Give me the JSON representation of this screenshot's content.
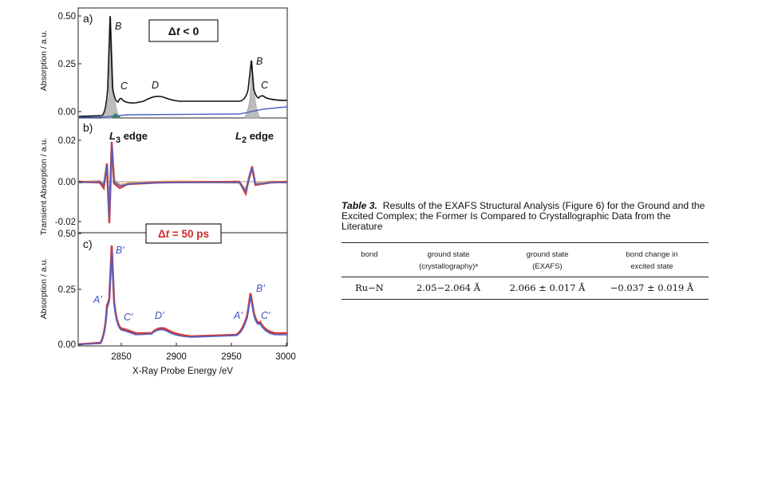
{
  "figure": {
    "xlabel": "X-Ray Probe Energy /eV",
    "x_ticks": [
      "2850",
      "2900",
      "2950",
      "3000"
    ],
    "panel_a": {
      "letter": "a)",
      "ylabel": "Absorption / a.u.",
      "y_ticks": [
        "0.50",
        "0.25",
        "0.00"
      ],
      "box_prefix": "Δ",
      "box_var": "t",
      "box_rest": " < 0",
      "peaks": [
        "B",
        "C",
        "D",
        "B",
        "C"
      ]
    },
    "panel_b": {
      "letter": "b)",
      "ylabel": "Transient Absorption / a.u.",
      "y_ticks": [
        "0.02",
        "0.00",
        "-0.02"
      ],
      "edge_l3_letter": "L",
      "edge_l3_sub": "3",
      "edge_l3_word": " edge",
      "edge_l2_letter": "L",
      "edge_l2_sub": "2",
      "edge_l2_word": " edge"
    },
    "panel_c": {
      "letter": "c)",
      "ylabel": "Absorption / a.u.",
      "y_ticks": [
        "0.50",
        "0.25",
        "0.00"
      ],
      "box_prefix": "Δ",
      "box_var": "t",
      "box_rest": " = 50 ps",
      "peaks": [
        "A'",
        "B'",
        "C'",
        "D'",
        "A'",
        "B'",
        "C'"
      ]
    }
  },
  "caption": {
    "label": "Table 3.",
    "text": "Results of the EXAFS Structural Analysis (Figure 6) for the Ground and the Excited Complex; the Former Is Compared to Crystallographic Data from the Literature"
  },
  "table": {
    "headers": [
      {
        "line1": "",
        "line2": "bond"
      },
      {
        "line1": "ground state",
        "line2": "(crystallography)ᵃ"
      },
      {
        "line1": "ground state",
        "line2": "(EXAFS)"
      },
      {
        "line1": "bond change in",
        "line2": "excited state"
      }
    ],
    "rows": [
      [
        "Ru−N",
        "2.05−2.064 Å",
        "2.066 ± 0.017 Å",
        "−0.037 ± 0.019 Å"
      ]
    ]
  },
  "colors": {
    "black_trace": "#111111",
    "blue_trace": "#4a62c8",
    "red_trace": "#d23a3a",
    "orange_trace": "#e8a05a",
    "label_blue": "#3f52c0",
    "label_red": "#cc2a2a",
    "fill_gray": "#bdbdbd",
    "fill_green": "#2e8b3a"
  }
}
